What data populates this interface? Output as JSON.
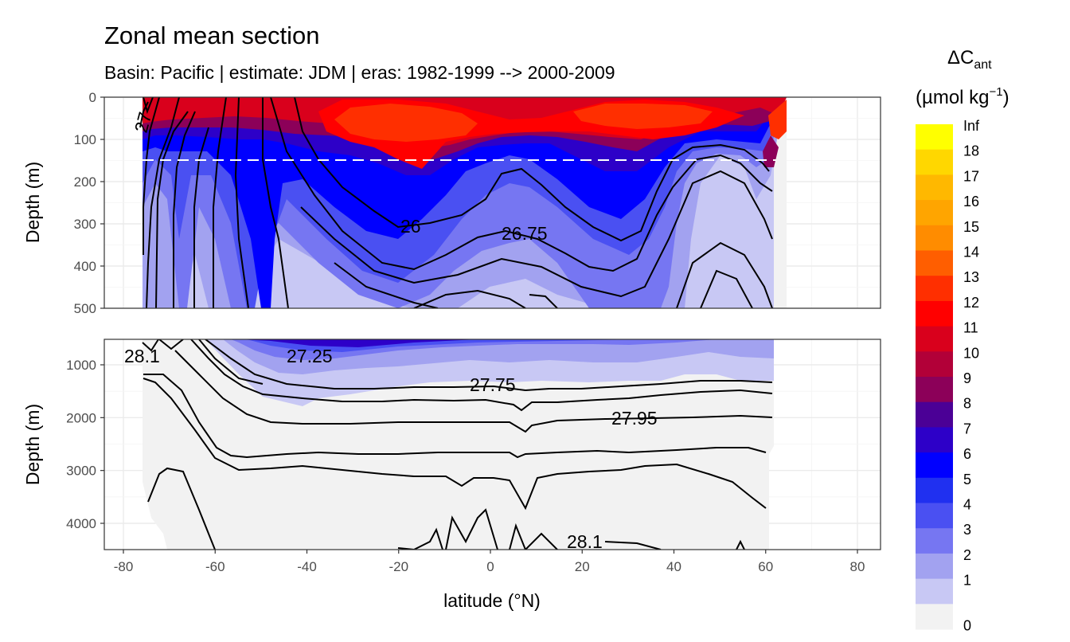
{
  "chart_data": {
    "type": "contour",
    "title": "Zonal mean section",
    "subtitle": "Basin: Pacific | estimate: JDM  | eras: 1982-1999 --> 2000-2009",
    "xlabel": "latitude (°N)",
    "ylabel": "Depth (m)",
    "xlim": [
      -85,
      85
    ],
    "x_ticks": [
      "-80",
      "-60",
      "-40",
      "-20",
      "0",
      "20",
      "40",
      "60",
      "80"
    ],
    "panels": [
      {
        "name": "upper",
        "ylim": [
          0,
          500
        ],
        "y_ticks": [
          "0",
          "100",
          "200",
          "300",
          "400",
          "500"
        ]
      },
      {
        "name": "lower",
        "ylim": [
          500,
          4500
        ],
        "y_ticks": [
          "1000",
          "2000",
          "3000",
          "4000"
        ]
      }
    ],
    "reference_line_depth": 150,
    "legend": {
      "title_main": "ΔC",
      "title_sub": "ant",
      "unit_prefix": "(µmol kg",
      "unit_exp": "−1",
      "unit_suffix": ")",
      "levels": [
        "Inf",
        "18",
        "17",
        "16",
        "15",
        "14",
        "13",
        "12",
        "11",
        "10",
        "9",
        "8",
        "7",
        "6",
        "5",
        "4",
        "3",
        "2",
        "1",
        "0"
      ],
      "colors": [
        "#ffff00",
        "#ffd700",
        "#ffb800",
        "#ffa500",
        "#ff8c00",
        "#ff5e00",
        "#ff2f00",
        "#ff0000",
        "#d9001c",
        "#b20038",
        "#8c0059",
        "#4b0096",
        "#2d00c8",
        "#0000ff",
        "#2030f0",
        "#4a50f2",
        "#7676f2",
        "#a2a2f0",
        "#c8c8f4",
        "#f2f2f2"
      ]
    },
    "contour_labels": [
      "26",
      "26.75",
      "27.25",
      "27.75",
      "27.95",
      "28.1",
      "28.1",
      "27"
    ]
  }
}
